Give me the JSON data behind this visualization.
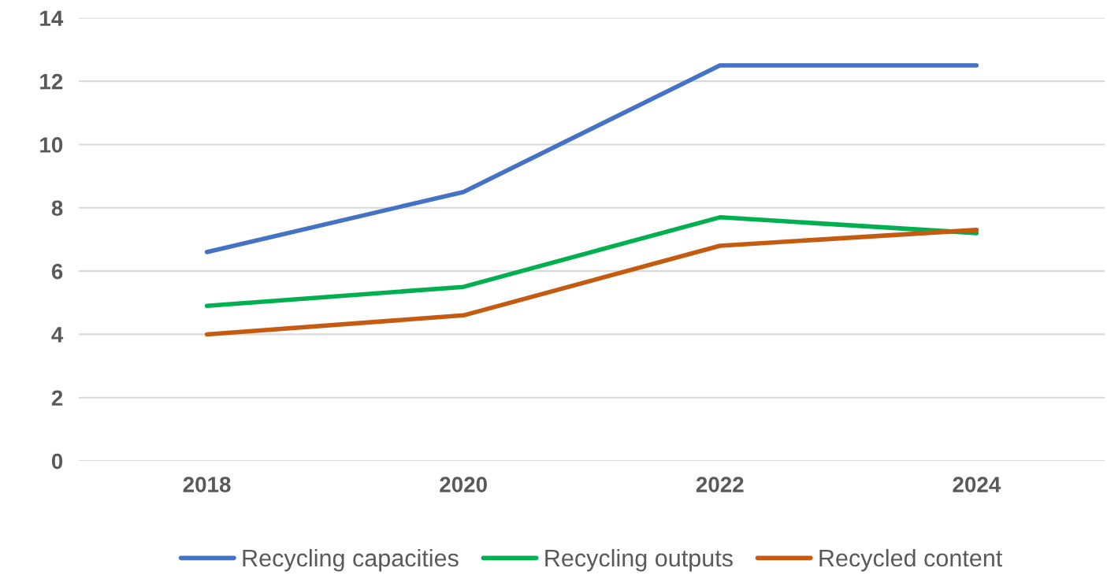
{
  "chart_data": {
    "type": "line",
    "categories": [
      "2018",
      "2020",
      "2022",
      "2024"
    ],
    "series": [
      {
        "name": "Recycling capacities",
        "color": "#4472c4",
        "values": [
          6.6,
          8.5,
          12.5,
          12.5
        ]
      },
      {
        "name": "Recycling outputs",
        "color": "#00b050",
        "values": [
          4.9,
          5.5,
          7.7,
          7.2
        ]
      },
      {
        "name": "Recycled content",
        "color": "#c55a11",
        "values": [
          4.0,
          4.6,
          6.8,
          7.3
        ]
      }
    ],
    "ylim": [
      0,
      14
    ],
    "yticks": [
      0,
      2,
      4,
      6,
      8,
      10,
      12,
      14
    ],
    "grid": "y",
    "legend": "bottom",
    "marker": "none",
    "line_style": "solid"
  }
}
